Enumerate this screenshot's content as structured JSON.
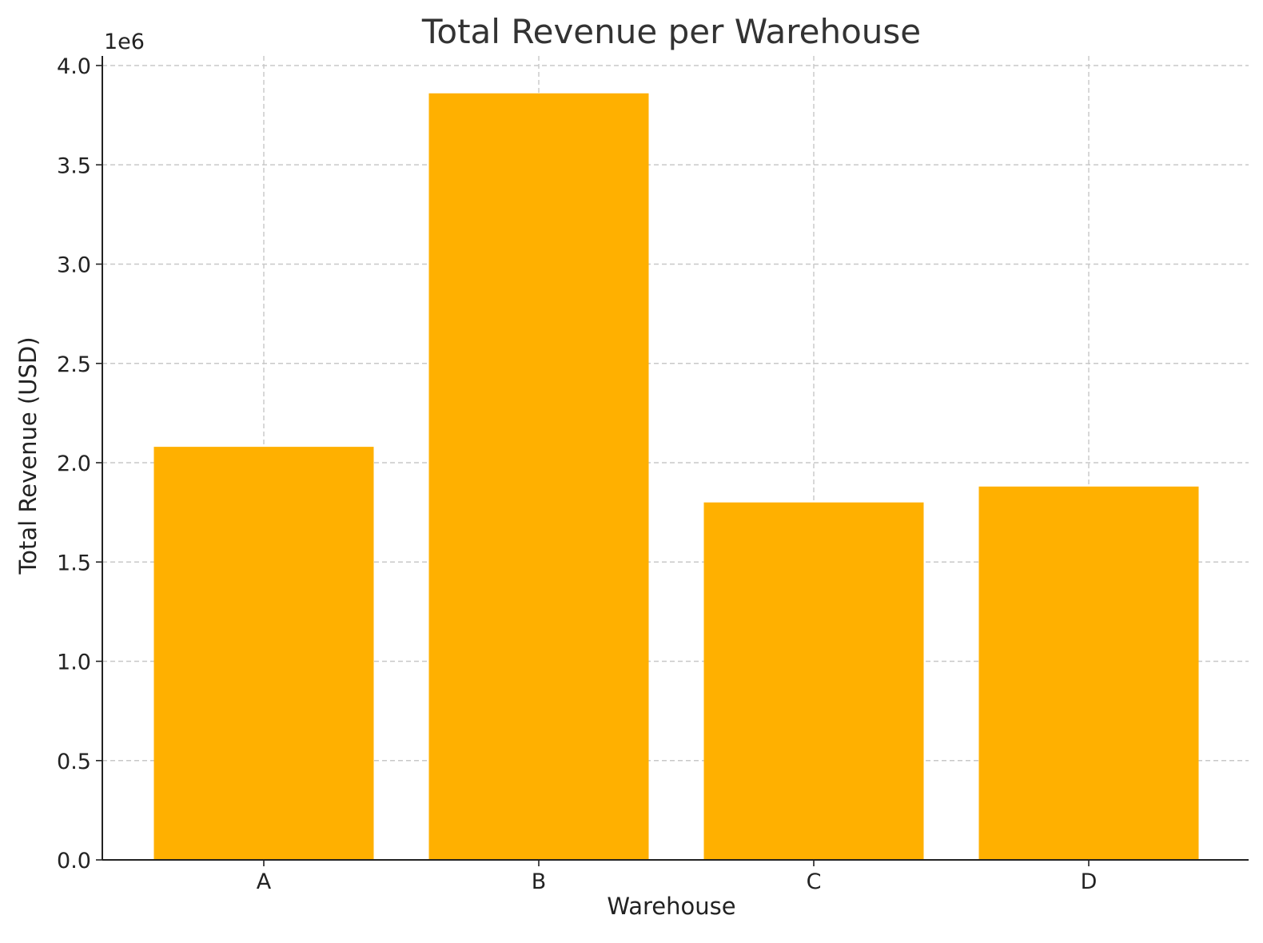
{
  "chart_data": {
    "type": "bar",
    "title": "Total Revenue per Warehouse",
    "xlabel": "Warehouse",
    "ylabel": "Total Revenue (USD)",
    "y_offset_label": "1e6",
    "categories": [
      "A",
      "B",
      "C",
      "D"
    ],
    "values": [
      2080000,
      3860000,
      1800000,
      1880000
    ],
    "ylim": [
      0,
      4000000
    ],
    "yticks": [
      0,
      500000,
      1000000,
      1500000,
      2000000,
      2500000,
      3000000,
      3500000,
      4000000
    ],
    "ytick_labels": [
      "0.0",
      "0.5",
      "1.0",
      "1.5",
      "2.0",
      "2.5",
      "3.0",
      "3.5",
      "4.0"
    ],
    "bar_color": "#FFB000",
    "grid": true,
    "legend": "none"
  }
}
